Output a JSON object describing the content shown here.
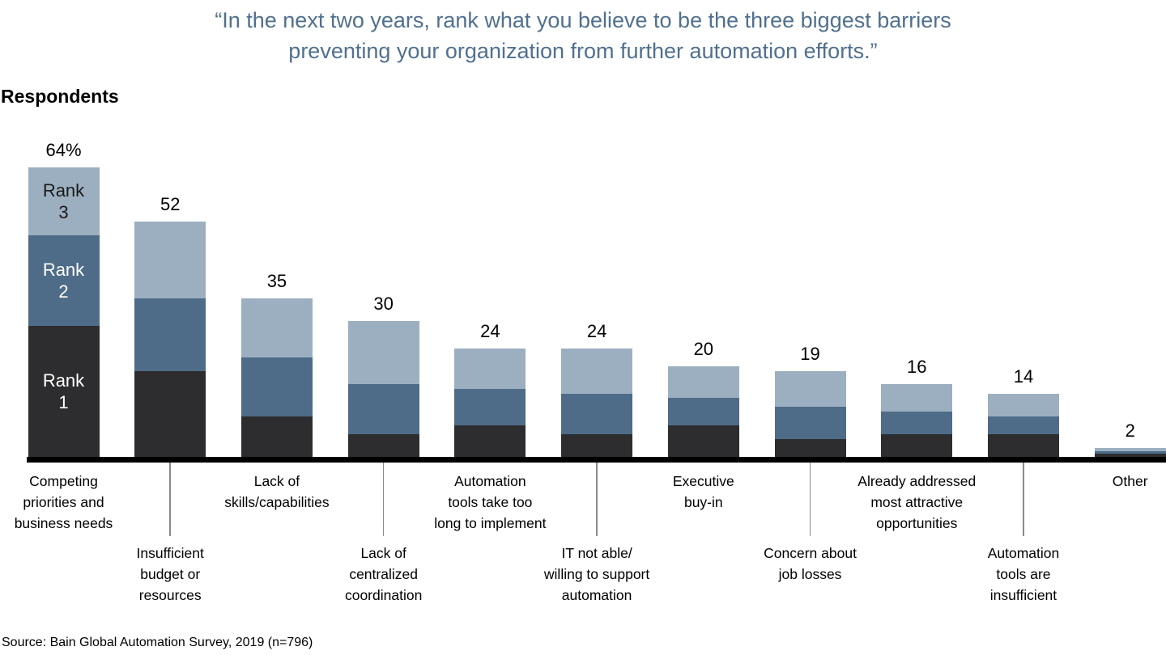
{
  "chart_data": {
    "type": "bar",
    "stacked": true,
    "title": "“In the next two years, rank what you believe to be the three biggest barriers preventing your organization from further automation efforts.”",
    "title_lines": [
      "“In the next two years, rank what you believe to be the three biggest barriers",
      "preventing your organization from further automation efforts.”"
    ],
    "ylabel": "Respondents",
    "xlabel": "",
    "source": "Source: Bain Global Automation Survey, 2019 (n=796)",
    "value_unit": "percent of respondents",
    "ylim": [
      0,
      64
    ],
    "grid": false,
    "legend_position": "inside-first-bar",
    "legend": [
      {
        "name": "Rank 3",
        "display": "Rank\n3",
        "color": "#9cafc0",
        "text_color": "#1a1a1a"
      },
      {
        "name": "Rank 2",
        "display": "Rank\n2",
        "color": "#4e6c88",
        "text_color": "#ffffff"
      },
      {
        "name": "Rank 1",
        "display": "Rank\n1",
        "color": "#2d2d2f",
        "text_color": "#ffffff"
      }
    ],
    "categories": [
      "Competing priorities and business needs",
      "Insufficient budget or resources",
      "Lack of skills/capabilities",
      "Lack of centralized coordination",
      "Automation tools take too long to implement",
      "IT not able/willing to support automation",
      "Executive buy-in",
      "Concern about job losses",
      "Already addressed most attractive opportunities",
      "Automation tools are insufficient",
      "Other"
    ],
    "category_label_lines": [
      "Competing\npriorities and\nbusiness needs",
      "Insufficient\nbudget or\nresources",
      "Lack of\nskills/capabilities",
      "Lack of\ncentralized\ncoordination",
      "Automation\ntools take too\nlong to implement",
      "IT not able/\nwilling to support\nautomation",
      "Executive\nbuy-in",
      "Concern about\njob losses",
      "Already addressed\nmost attractive\nopportunities",
      "Automation\ntools are\ninsufficient",
      "Other"
    ],
    "category_label_row": [
      1,
      2,
      1,
      2,
      1,
      2,
      1,
      2,
      1,
      2,
      1
    ],
    "totals": [
      64,
      52,
      35,
      30,
      24,
      24,
      20,
      19,
      16,
      14,
      2
    ],
    "total_labels": [
      "64%",
      "52",
      "35",
      "30",
      "24",
      "24",
      "20",
      "19",
      "16",
      "14",
      "2"
    ],
    "series": [
      {
        "name": "Rank 1",
        "values": [
          29,
          19,
          9,
          5,
          7,
          5,
          7,
          4,
          5,
          5,
          0.8
        ]
      },
      {
        "name": "Rank 2",
        "values": [
          20,
          16,
          13,
          11,
          8,
          9,
          6,
          7,
          5,
          4,
          0.4
        ]
      },
      {
        "name": "Rank 3",
        "values": [
          15,
          17,
          13,
          14,
          9,
          10,
          7,
          8,
          6,
          5,
          0.8
        ]
      }
    ]
  },
  "colors": {
    "rank1": "#2d2d2f",
    "rank2": "#4e6c88",
    "rank3": "#9cafc0",
    "title_text": "#50708f",
    "axis_line": "#000000",
    "tick_line": "#8a8a8a",
    "label_text": "#000000"
  }
}
